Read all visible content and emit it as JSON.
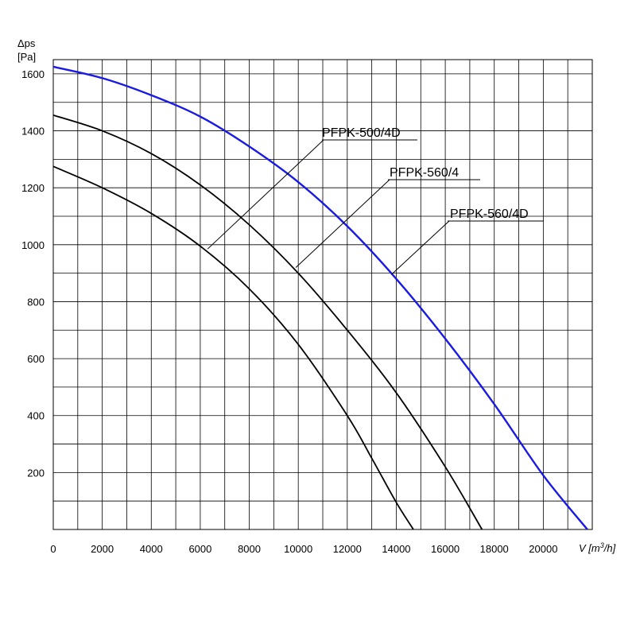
{
  "chart_data": {
    "type": "line",
    "title": "",
    "ylabel_line1": "Δps",
    "ylabel_line2": "[Pa]",
    "xlabel_prefix": "V [m",
    "xlabel_sup": "3",
    "xlabel_suffix": "/h]",
    "xlim": [
      0,
      22000
    ],
    "ylim": [
      0,
      1650
    ],
    "x_ticks": [
      0,
      2000,
      4000,
      6000,
      8000,
      10000,
      12000,
      14000,
      16000,
      18000,
      20000
    ],
    "y_ticks": [
      200,
      400,
      600,
      800,
      1000,
      1200,
      1400,
      1600
    ],
    "x_grid_step": 1000,
    "y_grid_step": 100,
    "grid": true,
    "series": [
      {
        "name": "PFPK-500/4D",
        "color": "#000000",
        "x": [
          0,
          2000,
          4000,
          6000,
          8000,
          10000,
          12000,
          13000,
          14000,
          14700
        ],
        "y": [
          1275,
          1200,
          1110,
          995,
          845,
          650,
          400,
          250,
          95,
          0
        ],
        "label_anchor_x": 6300,
        "label_anchor_y": 985
      },
      {
        "name": "PFPK-560/4",
        "color": "#000000",
        "x": [
          0,
          2000,
          4000,
          6000,
          8000,
          10000,
          12000,
          14000,
          16000,
          17500
        ],
        "y": [
          1455,
          1400,
          1320,
          1210,
          1070,
          900,
          700,
          480,
          220,
          0
        ],
        "label_anchor_x": 9900,
        "label_anchor_y": 920
      },
      {
        "name": "PFPK-560/4D",
        "color": "#1a1ae6",
        "x": [
          0,
          2000,
          4000,
          6000,
          8000,
          10000,
          12000,
          14000,
          16000,
          18000,
          20000,
          21800
        ],
        "y": [
          1625,
          1585,
          1525,
          1450,
          1345,
          1220,
          1065,
          880,
          670,
          440,
          190,
          0
        ],
        "label_anchor_x": 13800,
        "label_anchor_y": 895
      }
    ]
  }
}
